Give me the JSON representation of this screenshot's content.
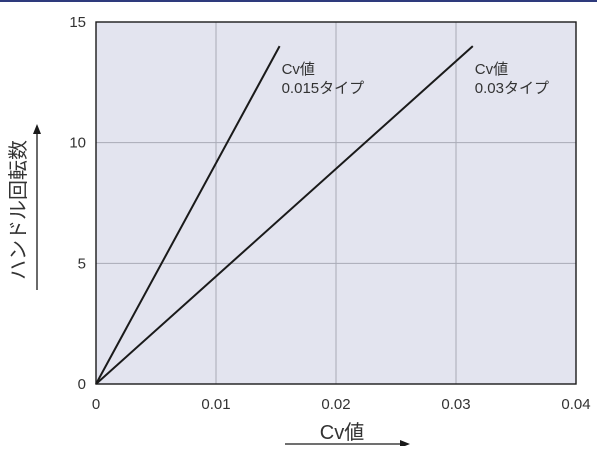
{
  "chart_data": {
    "type": "line",
    "title": "",
    "xlabel": "Cv値",
    "ylabel": "ハンドル回転数",
    "xlim": [
      0,
      0.04
    ],
    "ylim": [
      0,
      15
    ],
    "x_ticks": [
      0,
      0.01,
      0.02,
      0.03,
      0.04
    ],
    "x_tick_labels": [
      "0",
      "0.01",
      "0.02",
      "0.03",
      "0.04"
    ],
    "y_ticks": [
      0,
      5,
      10,
      15
    ],
    "y_tick_labels": [
      "0",
      "5",
      "10",
      "15"
    ],
    "grid": true,
    "series": [
      {
        "x": [
          0,
          0.0153
        ],
        "y": [
          0,
          14
        ],
        "annotation": [
          "Cv値",
          "0.015タイプ"
        ]
      },
      {
        "x": [
          0,
          0.0314
        ],
        "y": [
          0,
          14
        ],
        "annotation": [
          "Cv値",
          "0.03タイプ"
        ]
      }
    ],
    "colors": {
      "plot_background": "#e3e4ef",
      "grid": "#a9aab6",
      "line": "#1a1a1a",
      "frame": "#1a1a1a",
      "top_rule": "#2e3a7c",
      "text": "#333333"
    }
  }
}
